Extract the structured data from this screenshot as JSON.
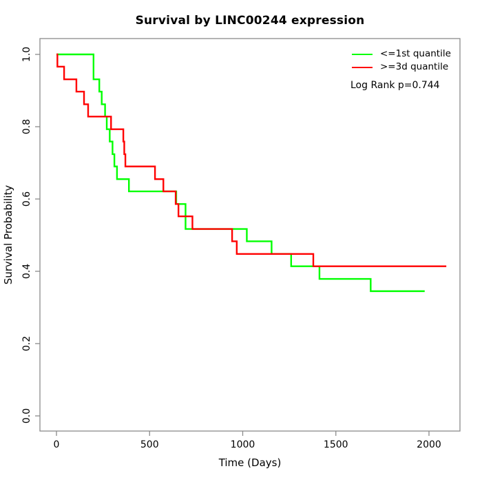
{
  "chart_data": {
    "type": "line",
    "chart_kind": "kaplan-meier-step-survival",
    "title": "Survival by LINC00244 expression",
    "xlabel": "Time (Days)",
    "ylabel": "Survival Probability",
    "x_tick_labels": [
      "0",
      "500",
      "1000",
      "1500",
      "2000"
    ],
    "x_tick_values": [
      0,
      500,
      1000,
      1500,
      2000
    ],
    "y_tick_labels": [
      "0.0",
      "0.2",
      "0.4",
      "0.6",
      "0.8",
      "1.0"
    ],
    "y_tick_values": [
      0,
      0.2,
      0.4,
      0.6,
      0.8,
      1.0
    ],
    "xlim": [
      0,
      2100
    ],
    "ylim": [
      0,
      1
    ],
    "grid": false,
    "legend_position": "top-right",
    "p_value_text": "Log Rank p=0.744",
    "axis_color": "#8a8a8a",
    "series": [
      {
        "name": "<=1st quantile",
        "color": "#00ff00",
        "end_time": 1977,
        "points_time_survival": [
          [
            0,
            1.0
          ],
          [
            199,
            0.931
          ],
          [
            230,
            0.897
          ],
          [
            243,
            0.862
          ],
          [
            261,
            0.828
          ],
          [
            270,
            0.793
          ],
          [
            286,
            0.759
          ],
          [
            301,
            0.724
          ],
          [
            311,
            0.69
          ],
          [
            325,
            0.655
          ],
          [
            389,
            0.621
          ],
          [
            643,
            0.586
          ],
          [
            693,
            0.517
          ],
          [
            1022,
            0.483
          ],
          [
            1155,
            0.448
          ],
          [
            1260,
            0.414
          ],
          [
            1412,
            0.379
          ],
          [
            1687,
            0.345
          ]
        ]
      },
      {
        "name": ">=3d quantile",
        "color": "#ff0000",
        "end_time": 2093,
        "points_time_survival": [
          [
            0,
            1.0
          ],
          [
            5,
            0.966
          ],
          [
            41,
            0.931
          ],
          [
            107,
            0.897
          ],
          [
            148,
            0.862
          ],
          [
            170,
            0.828
          ],
          [
            293,
            0.793
          ],
          [
            359,
            0.759
          ],
          [
            364,
            0.724
          ],
          [
            370,
            0.69
          ],
          [
            529,
            0.655
          ],
          [
            574,
            0.621
          ],
          [
            640,
            0.586
          ],
          [
            655,
            0.552
          ],
          [
            730,
            0.517
          ],
          [
            943,
            0.483
          ],
          [
            968,
            0.448
          ],
          [
            1379,
            0.414
          ]
        ]
      }
    ]
  }
}
